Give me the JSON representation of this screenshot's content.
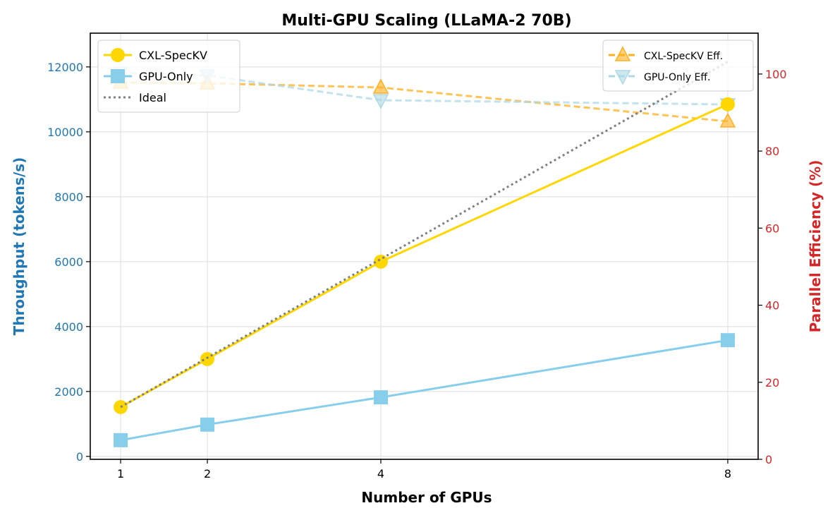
{
  "chart_data": {
    "type": "line",
    "title": "Multi-GPU Scaling (LLaMA-2 70B)",
    "xlabel": "Number of GPUs",
    "ylabel": "Throughput (tokens/s)",
    "y2label": "Parallel Efficiency (%)",
    "x": [
      1,
      2,
      4,
      8
    ],
    "xticks": [
      1,
      2,
      4,
      8
    ],
    "xlim": [
      0.65,
      8.35
    ],
    "ylim": [
      -90,
      13040
    ],
    "yticks": [
      0,
      2000,
      4000,
      6000,
      8000,
      10000,
      12000
    ],
    "y2lim": [
      0,
      110.6
    ],
    "y2ticks": [
      0,
      20,
      40,
      60,
      80,
      100
    ],
    "grid": true,
    "series": [
      {
        "name": "CXL-SpecKV",
        "axis": "left",
        "values": [
          1520,
          3000,
          6000,
          10850
        ],
        "color": "#FFD700",
        "marker": "circle",
        "style": "solid"
      },
      {
        "name": "GPU-Only",
        "axis": "left",
        "values": [
          500,
          980,
          1820,
          3580
        ],
        "color": "#87CEEB",
        "marker": "square",
        "style": "solid"
      },
      {
        "name": "Ideal",
        "axis": "left",
        "values": [
          1520,
          3040,
          6080,
          12160
        ],
        "color": "#808080",
        "marker": "none",
        "style": "dotted"
      },
      {
        "name": "CXL-SpecKV Eff.",
        "axis": "right",
        "values": [
          97.8,
          97.6,
          96.5,
          87.7
        ],
        "color": "#FFB020",
        "marker": "triangle-up",
        "style": "dashed"
      },
      {
        "name": "GPU-Only Eff.",
        "axis": "right",
        "values": [
          100.3,
          99.6,
          93.2,
          92.1
        ],
        "color": "#ADD8E6",
        "marker": "triangle-down",
        "style": "dashed"
      }
    ],
    "legend_left": "top-left",
    "legend_right": "top-right",
    "left_axis_color": "#1F77B4",
    "right_axis_color": "#D62728"
  }
}
